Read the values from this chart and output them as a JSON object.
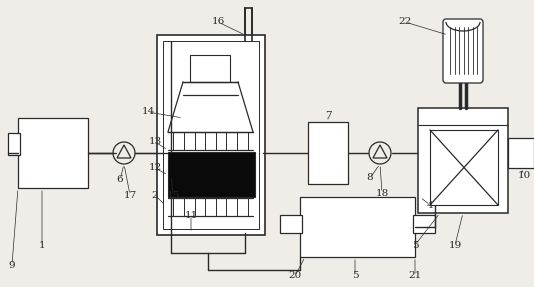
{
  "bg_color": "#f0ede8",
  "line_color": "#2a2a2a",
  "lw": 0.9,
  "fig_w": 5.34,
  "fig_h": 2.87,
  "dpi": 100
}
